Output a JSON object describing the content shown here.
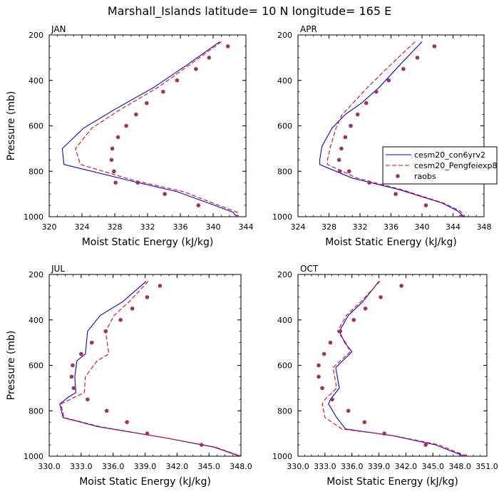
{
  "figure": {
    "title": "Marshall_Islands  latitude= 10 N longitude= 165 E"
  },
  "legend": {
    "entries": [
      {
        "label": "cesm20_con6yrv2",
        "color": "#0000ff",
        "style": "solid"
      },
      {
        "label": "cesm20_Pengfeiexp8",
        "color": "#ff0000",
        "style": "dashed"
      },
      {
        "label": "raobs",
        "color": "#a0326a",
        "style": "marker"
      }
    ]
  },
  "chart_data": [
    {
      "type": "line",
      "panel_label": "JAN",
      "xlabel": "Moist Static Energy (kJ/kg)",
      "ylabel": "Pressure (mb)",
      "xlim": [
        320,
        344
      ],
      "ylim": [
        1000,
        200
      ],
      "y_reversed": true,
      "xticks": [
        320,
        324,
        328,
        332,
        336,
        340,
        344
      ],
      "xtick_labels": [
        "320",
        "324",
        "328",
        "332",
        "336",
        "340",
        "344"
      ],
      "yticks": [
        200,
        400,
        600,
        800,
        1000
      ],
      "ytick_labels": [
        "200",
        "400",
        "600",
        "800",
        "1000"
      ],
      "series": [
        {
          "name": "cesm20_con6yrv2",
          "color": "#0000ff",
          "style": "solid",
          "x": [
            340.8,
            336.9,
            332.8,
            327.9,
            324.2,
            321.6,
            321.8,
            329.7,
            335.6,
            340.2,
            342.4,
            342.9
          ],
          "y": [
            230,
            330,
            430,
            530,
            610,
            700,
            770,
            840,
            890,
            950,
            980,
            1000
          ]
        },
        {
          "name": "cesm20_Pengfeiexp8",
          "color": "#ff0000",
          "style": "dashed",
          "x": [
            341.0,
            337.2,
            333.3,
            328.6,
            325.2,
            323.2,
            323.8,
            330.3,
            336.4,
            340.7,
            342.9,
            343.1
          ],
          "y": [
            230,
            330,
            430,
            530,
            610,
            700,
            770,
            840,
            890,
            950,
            980,
            1000
          ]
        },
        {
          "name": "raobs",
          "color": "#a0326a",
          "style": "marker",
          "x": [
            341.8,
            339.5,
            337.9,
            335.6,
            333.9,
            331.9,
            330.6,
            329.4,
            328.4,
            327.7,
            327.6,
            327.9,
            328.1,
            330.8,
            334.1,
            338.2,
            342.9
          ],
          "y": [
            250,
            300,
            350,
            400,
            450,
            500,
            550,
            600,
            650,
            700,
            750,
            800,
            850,
            850,
            900,
            950,
            1000
          ]
        }
      ]
    },
    {
      "type": "line",
      "panel_label": "APR",
      "xlabel": "Moist Static Energy (kJ/kg)",
      "ylabel": "",
      "xlim": [
        324,
        348
      ],
      "ylim": [
        1000,
        200
      ],
      "y_reversed": true,
      "xticks": [
        324,
        328,
        332,
        336,
        340,
        344,
        348
      ],
      "xtick_labels": [
        "324",
        "328",
        "332",
        "336",
        "340",
        "344",
        "348"
      ],
      "yticks": [
        200,
        400,
        600,
        800,
        1000
      ],
      "ytick_labels": [
        "200",
        "400",
        "600",
        "800",
        "1000"
      ],
      "series": [
        {
          "name": "cesm20_con6yrv2",
          "color": "#0000ff",
          "style": "solid",
          "x": [
            340.0,
            337.2,
            334.5,
            332.2,
            330.1,
            328.4,
            327.1,
            326.8,
            326.8,
            331.0,
            337.0,
            342.6,
            344.6,
            345.4
          ],
          "y": [
            230,
            330,
            430,
            500,
            550,
            610,
            690,
            750,
            770,
            830,
            880,
            940,
            975,
            1000
          ]
        },
        {
          "name": "cesm20_Pengfeiexp8",
          "color": "#ff0000",
          "style": "dashed",
          "x": [
            339.1,
            336.0,
            333.0,
            331.1,
            329.7,
            328.9,
            328.2,
            327.8,
            327.8,
            331.6,
            337.3,
            342.8,
            344.9,
            345.6
          ],
          "y": [
            230,
            330,
            430,
            500,
            550,
            610,
            690,
            750,
            770,
            830,
            880,
            940,
            975,
            1000
          ]
        },
        {
          "name": "raobs",
          "color": "#a0326a",
          "style": "marker",
          "x": [
            341.6,
            339.4,
            337.6,
            335.7,
            334.1,
            332.8,
            331.7,
            330.8,
            330.1,
            329.6,
            329.3,
            329.4,
            330.6,
            333.2,
            336.6,
            340.5,
            345.0
          ],
          "y": [
            250,
            300,
            350,
            400,
            450,
            500,
            550,
            600,
            650,
            700,
            750,
            800,
            800,
            850,
            900,
            950,
            1000
          ]
        }
      ]
    },
    {
      "type": "line",
      "panel_label": "JUL",
      "xlabel": "Moist Static Energy (kJ/kg)",
      "ylabel": "Pressure (mb)",
      "xlim": [
        330,
        348
      ],
      "ylim": [
        1000,
        200
      ],
      "y_reversed": true,
      "xticks": [
        330,
        333,
        336,
        339,
        342,
        345,
        348
      ],
      "xtick_labels": [
        "330.0",
        "333.0",
        "336.0",
        "339.0",
        "342.0",
        "345.0",
        "348.0"
      ],
      "yticks": [
        200,
        400,
        600,
        800,
        1000
      ],
      "ytick_labels": [
        "200",
        "400",
        "600",
        "800",
        "1000"
      ],
      "series": [
        {
          "name": "cesm20_con6yrv2",
          "color": "#0000ff",
          "style": "solid",
          "x": [
            339.1,
            336.9,
            334.8,
            333.6,
            333.4,
            332.6,
            332.4,
            332.5,
            331.8,
            331.0,
            331.3,
            334.6,
            341.0,
            345.5,
            347.9
          ],
          "y": [
            230,
            320,
            380,
            450,
            550,
            580,
            650,
            720,
            740,
            770,
            830,
            870,
            920,
            960,
            1000
          ]
        },
        {
          "name": "cesm20_Pengfeiexp8",
          "color": "#ff0000",
          "style": "dashed",
          "x": [
            339.3,
            337.5,
            336.1,
            335.3,
            335.6,
            334.5,
            333.4,
            333.3,
            332.4,
            331.1,
            331.4,
            334.8,
            341.0,
            345.6,
            348.0
          ],
          "y": [
            230,
            320,
            380,
            450,
            550,
            580,
            650,
            720,
            740,
            770,
            830,
            870,
            920,
            960,
            1000
          ]
        },
        {
          "name": "raobs",
          "color": "#a0326a",
          "style": "marker",
          "x": [
            340.4,
            339.2,
            337.8,
            336.7,
            335.3,
            334.0,
            333.0,
            332.2,
            332.1,
            332.3,
            333.6,
            335.4,
            337.3,
            339.2,
            344.3,
            348.0
          ],
          "y": [
            250,
            300,
            350,
            400,
            450,
            500,
            550,
            600,
            650,
            700,
            750,
            800,
            850,
            900,
            950,
            1000
          ]
        }
      ]
    },
    {
      "type": "line",
      "panel_label": "OCT",
      "xlabel": "Moist Static Energy (kJ/kg)",
      "ylabel": "",
      "xlim": [
        330,
        351
      ],
      "ylim": [
        1000,
        200
      ],
      "y_reversed": true,
      "xticks": [
        330,
        333,
        336,
        339,
        342,
        345,
        348,
        351
      ],
      "xtick_labels": [
        "330.0",
        "333.0",
        "336.0",
        "339.0",
        "342.0",
        "345.0",
        "348.0",
        "351.0"
      ],
      "yticks": [
        200,
        400,
        600,
        800,
        1000
      ],
      "ytick_labels": [
        "200",
        "400",
        "600",
        "800",
        "1000"
      ],
      "series": [
        {
          "name": "cesm20_con6yrv2",
          "color": "#0000ff",
          "style": "solid",
          "x": [
            339.0,
            337.2,
            335.6,
            334.6,
            335.2,
            336.0,
            334.2,
            334.6,
            333.6,
            333.4,
            334.3,
            335.3,
            340.6,
            345.3,
            348.5
          ],
          "y": [
            230,
            320,
            380,
            450,
            500,
            540,
            610,
            700,
            750,
            770,
            830,
            880,
            910,
            950,
            1000
          ]
        },
        {
          "name": "cesm20_Pengfeiexp8",
          "color": "#ff0000",
          "style": "dashed",
          "x": [
            339.1,
            337.0,
            335.4,
            334.4,
            335.3,
            335.8,
            333.9,
            334.3,
            333.0,
            332.7,
            333.0,
            334.9,
            340.7,
            345.7,
            348.7
          ],
          "y": [
            230,
            320,
            380,
            450,
            500,
            540,
            610,
            700,
            750,
            770,
            830,
            880,
            910,
            950,
            1000
          ]
        },
        {
          "name": "raobs",
          "color": "#a0326a",
          "style": "marker",
          "x": [
            341.5,
            339.2,
            337.5,
            336.2,
            334.7,
            333.6,
            332.9,
            332.3,
            332.3,
            332.7,
            333.8,
            335.6,
            337.4,
            339.6,
            344.2,
            348.5
          ],
          "y": [
            250,
            300,
            350,
            400,
            450,
            500,
            550,
            600,
            650,
            700,
            750,
            800,
            850,
            900,
            950,
            1000
          ]
        }
      ]
    }
  ]
}
